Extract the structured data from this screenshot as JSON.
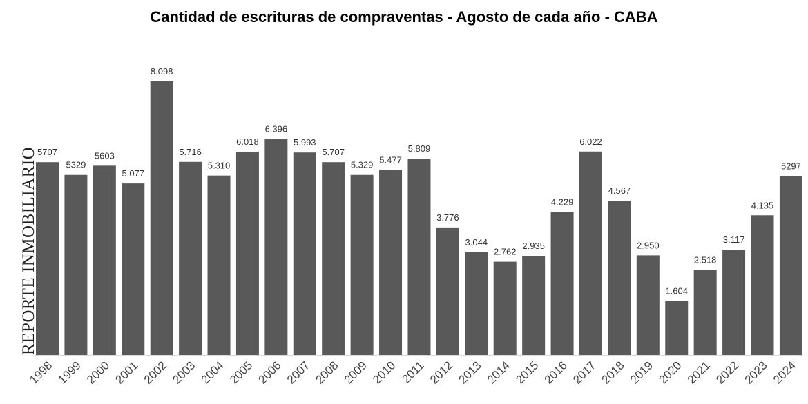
{
  "chart_data": {
    "type": "bar",
    "title": "Cantidad de escrituras de compraventas - Agosto de cada año - CABA",
    "watermark": "REPORTE INMOBILIARIO",
    "categories": [
      "1998",
      "1999",
      "2000",
      "2001",
      "2002",
      "2003",
      "2004",
      "2005",
      "2006",
      "2007",
      "2008",
      "2009",
      "2010",
      "2011",
      "2012",
      "2013",
      "2014",
      "2015",
      "2016",
      "2017",
      "2018",
      "2019",
      "2020",
      "2021",
      "2022",
      "2023",
      "2024"
    ],
    "values": [
      5707,
      5329,
      5603,
      5077,
      8098,
      5716,
      5310,
      6018,
      6396,
      5993,
      5707,
      5329,
      5477,
      5809,
      3776,
      3044,
      2762,
      2935,
      4229,
      6022,
      4567,
      2950,
      1604,
      2518,
      3117,
      4135,
      5297
    ],
    "data_labels": [
      "5707",
      "5329",
      "5603",
      "5.077",
      "8.098",
      "5.716",
      "5.310",
      "6.018",
      "6.396",
      "5.993",
      "5.707",
      "5.329",
      "5.477",
      "5.809",
      "3.776",
      "3.044",
      "2.762",
      "2.935",
      "4.229",
      "6.022",
      "4.567",
      "2.950",
      "1.604",
      "2.518",
      "3.117",
      "4.135",
      "5297"
    ],
    "bar_color": "#595959",
    "xlabel": "",
    "ylabel": "",
    "ylim": [
      0,
      8098
    ],
    "grid": false,
    "legend": "none"
  }
}
